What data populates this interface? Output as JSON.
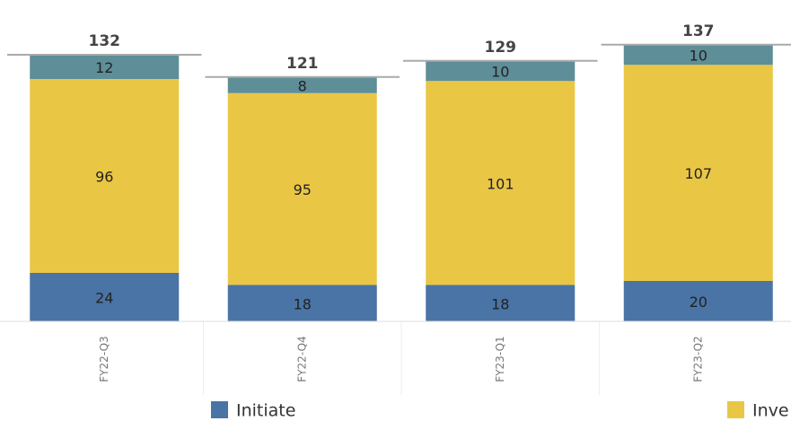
{
  "chart_data": {
    "type": "stacked_bar",
    "categories": [
      "FY22-Q3",
      "FY22-Q4",
      "FY23-Q1",
      "FY23-Q2"
    ],
    "series": [
      {
        "name": "Initiate",
        "color": "#4a74a5",
        "values": [
          24,
          18,
          18,
          20
        ]
      },
      {
        "name": "Inve",
        "color": "#eac645",
        "values": [
          96,
          95,
          101,
          107
        ]
      },
      {
        "color": "#5e8e98",
        "values": [
          12,
          8,
          10,
          10
        ]
      }
    ],
    "totals": [
      132,
      121,
      129,
      137
    ],
    "ylim": [
      0,
      140
    ]
  }
}
